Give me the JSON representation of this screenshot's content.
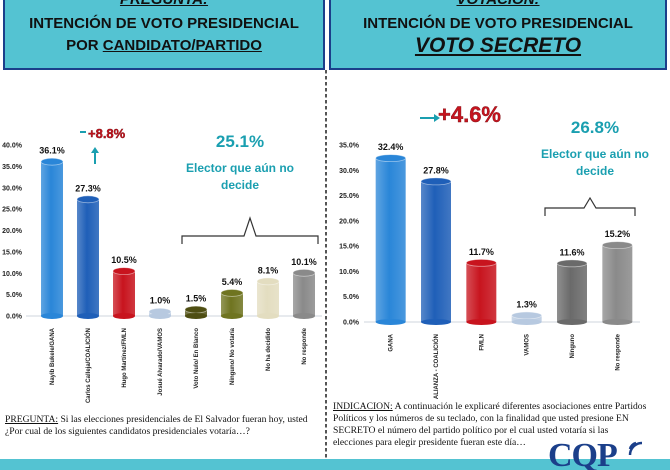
{
  "left": {
    "header_top": "PREGUNTA:",
    "header_line1": "INTENCIÓN DE VOTO PRESIDENCIAL",
    "header_line2_pre": "POR ",
    "header_line2_underlined": "CANDIDATO/PARTIDO",
    "note_label": "PREGUNTA:",
    "note_text": " Si las elecciones presidenciales de El Salvador fueran hoy, usted ¿Por cual de los siguientes candidatos presidenciales votaría…?"
  },
  "right": {
    "header_top": "VOTACION:",
    "header_line1": "INTENCIÓN DE VOTO PRESIDENCIAL",
    "header_line2": "VOTO SECRETO",
    "note_label": "INDICACION:",
    "note_text": " A continuación le explicaré diferentes asociaciones entre Partidos Políticos y los números de su teclado, con la finalidad que usted presione EN SECRETO el número del partido político por el cual usted votaría si las elecciones para elegir presidente fueran este día…"
  },
  "logo": {
    "text": "CQP"
  },
  "colors": {
    "header_bg": "#54c3d2",
    "header_border": "#1b3f8a",
    "accent_red": "#c8141e",
    "accent_teal": "#1a9fb0"
  },
  "chart_data": [
    {
      "type": "bar",
      "categories": [
        "Nayib Bukele/GANA",
        "Carlos Calleja/COALICIÓN",
        "Hugo Martínez/FMLN",
        "Josué Alvarado/VAMOS",
        "Voto Nulo/ En Blanco",
        "Ninguno/ No votaría",
        "No ha decidido",
        "No responde"
      ],
      "values": [
        36.1,
        27.3,
        10.5,
        1.0,
        1.5,
        5.4,
        8.1,
        10.1
      ],
      "value_labels": [
        "36.1%",
        "27.3%",
        "10.5%",
        "1.0%",
        "1.5%",
        "5.4%",
        "8.1%",
        "10.1%"
      ],
      "bar_colors": [
        "#2a86d8",
        "#1f5fb8",
        "#c8141e",
        "#b7c9e0",
        "#4e4e12",
        "#6f7420",
        "#e3ddc0",
        "#8a8a8a"
      ],
      "yticks": [
        "0.0%",
        "5.0%",
        "10.0%",
        "15.0%",
        "20.0%",
        "25.0%",
        "30.0%",
        "35.0%",
        "40.0%"
      ],
      "ylim": [
        0,
        40
      ],
      "annotations": {
        "diff": "+8.8%",
        "undecided_pct": "25.1%",
        "undecided_line1": "Elector que aún no",
        "undecided_line2": "decide"
      }
    },
    {
      "type": "bar",
      "categories": [
        "GANA",
        "ALIANZA - COALICIÓN",
        "FMLN",
        "VAMOS",
        "Ninguno",
        "No responde"
      ],
      "values": [
        32.4,
        27.8,
        11.7,
        1.3,
        11.6,
        15.2
      ],
      "value_labels": [
        "32.4%",
        "27.8%",
        "11.7%",
        "1.3%",
        "11.6%",
        "15.2%"
      ],
      "bar_colors": [
        "#2a86d8",
        "#1f5fb8",
        "#c8141e",
        "#b7c9e0",
        "#6a6a6a",
        "#8a8a8a"
      ],
      "yticks": [
        "0.0%",
        "5.0%",
        "10.0%",
        "15.0%",
        "20.0%",
        "25.0%",
        "30.0%",
        "35.0%"
      ],
      "ylim": [
        0,
        35
      ],
      "annotations": {
        "diff": "+4.6%",
        "undecided_pct": "26.8%",
        "undecided_line1": "Elector que aún no",
        "undecided_line2": "decide"
      }
    }
  ]
}
